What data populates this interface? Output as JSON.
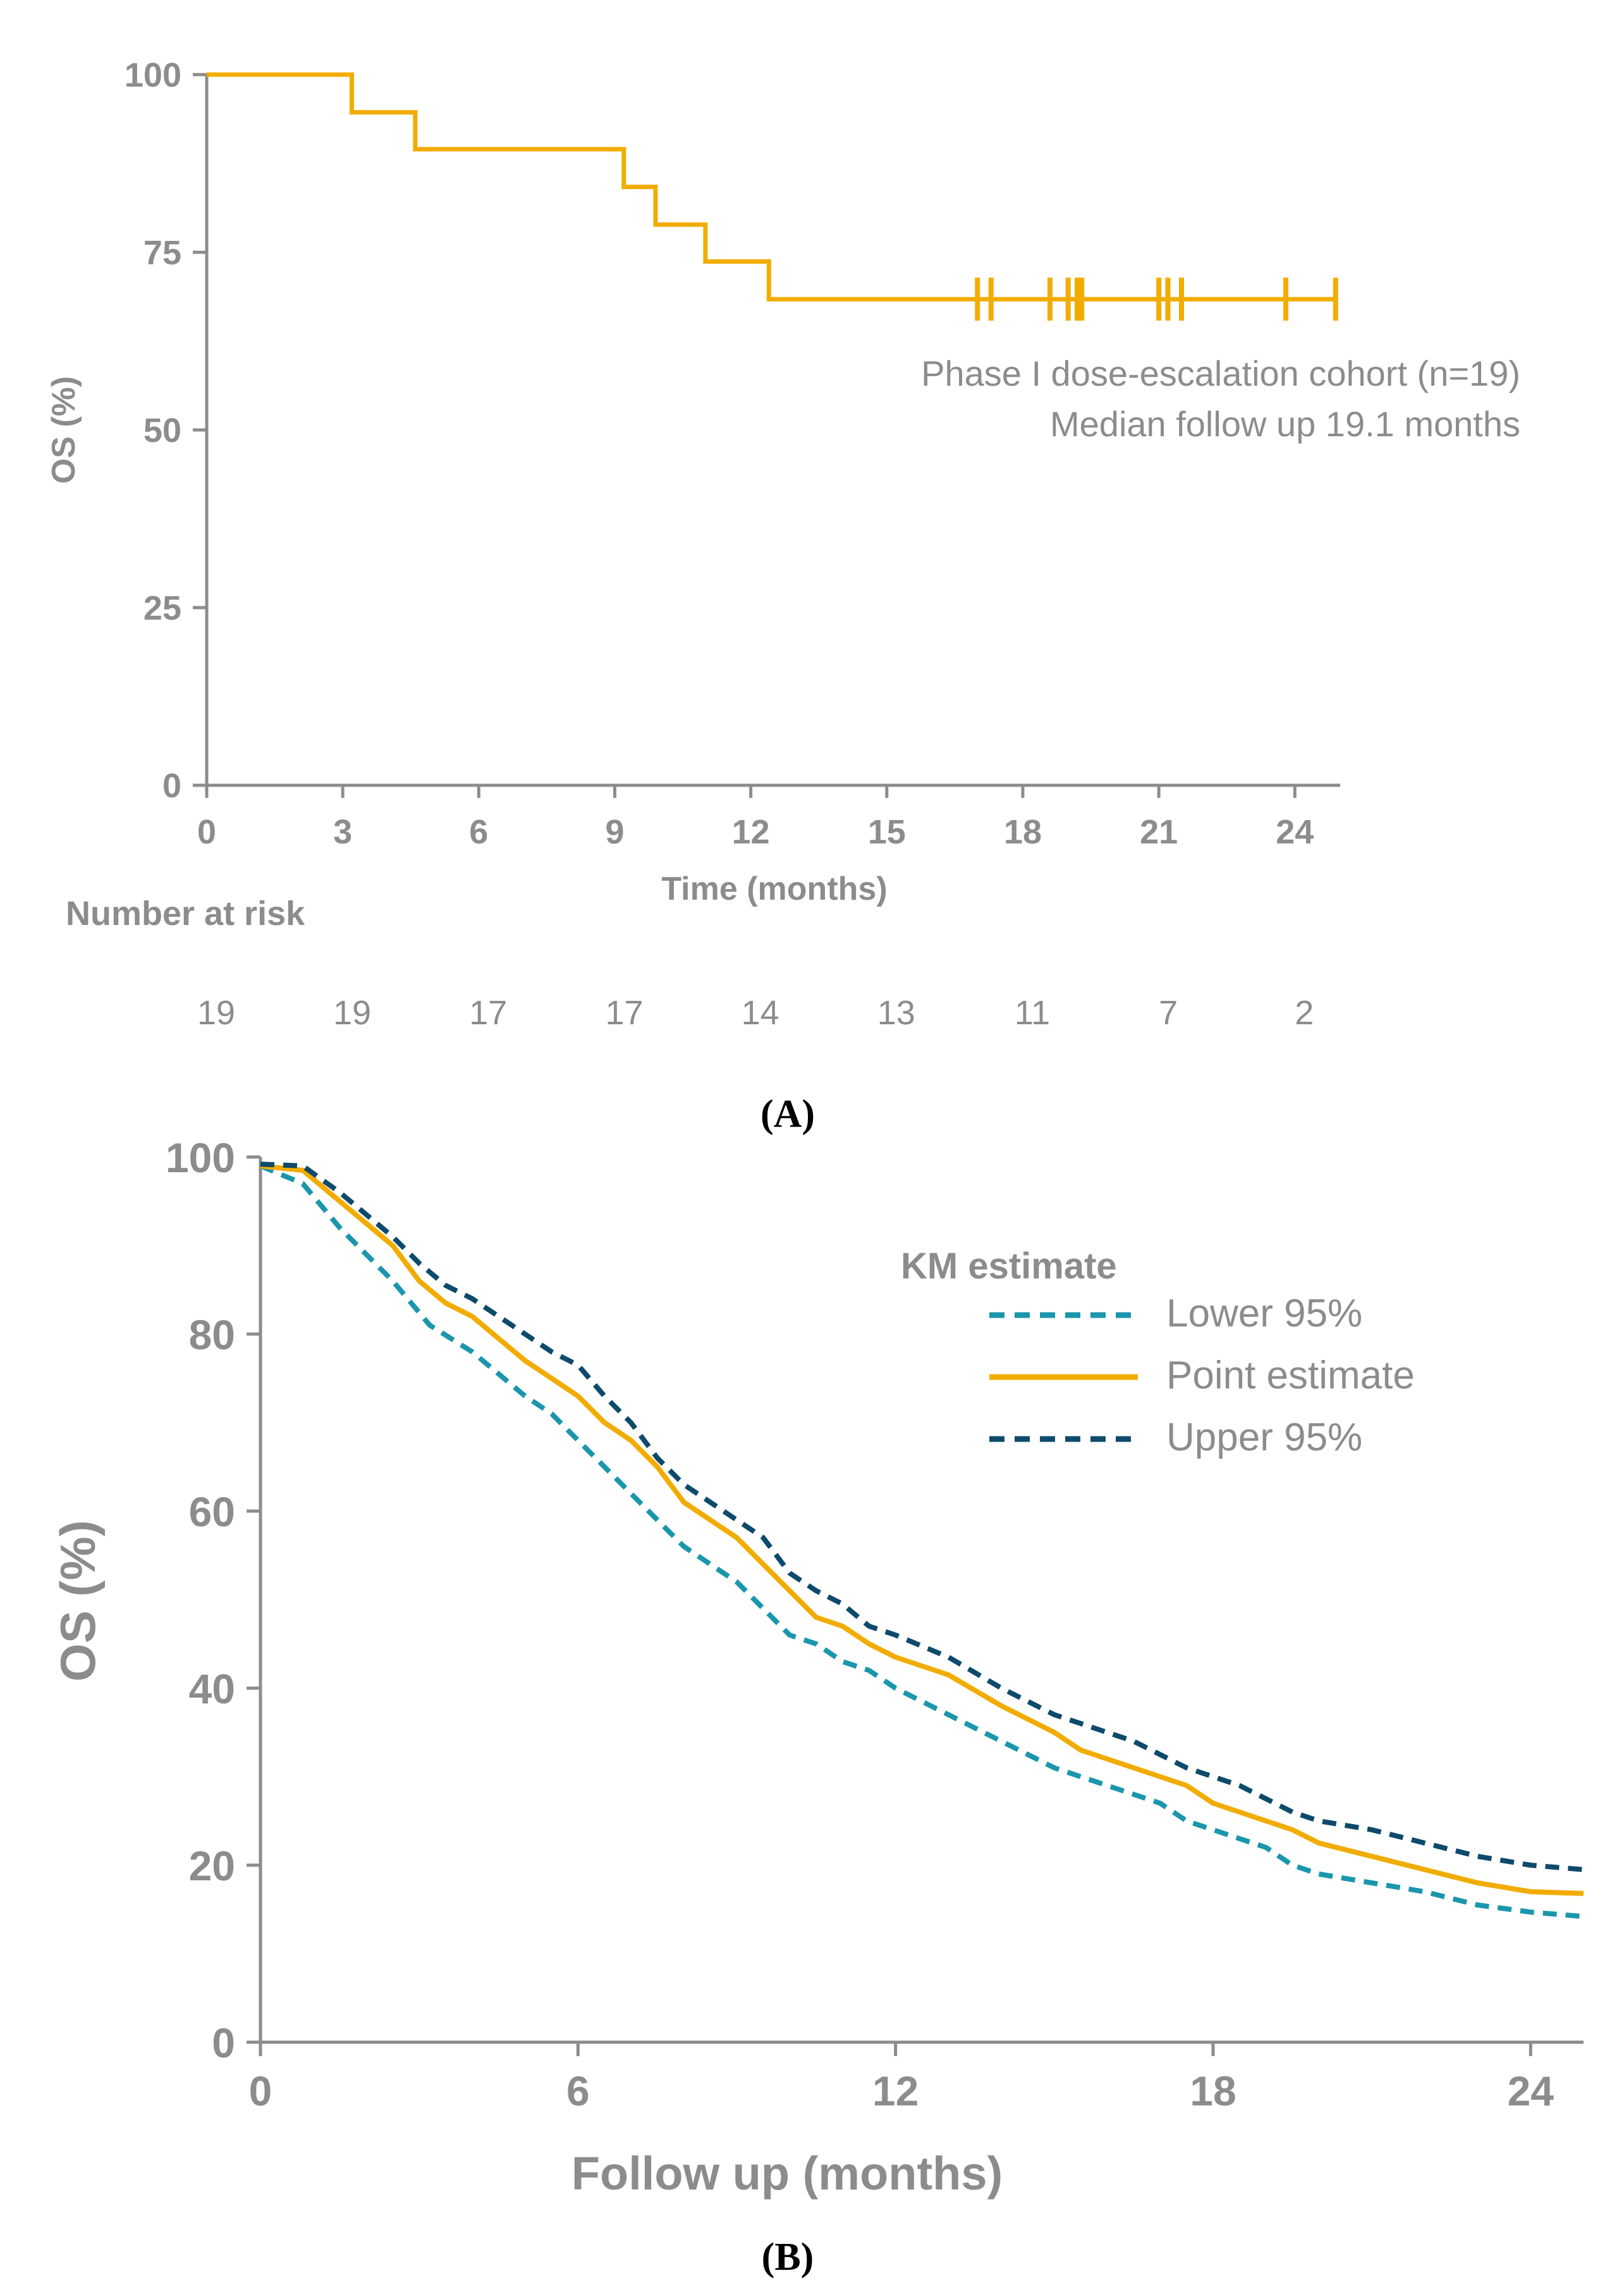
{
  "chart_data": [
    {
      "type": "line",
      "panel_label": "(A)",
      "title": "",
      "xlabel": "Time (months)",
      "ylabel": "OS (%)",
      "xlim": [
        0,
        25
      ],
      "ylim": [
        0,
        100
      ],
      "x_ticks": [
        0,
        3,
        6,
        9,
        12,
        15,
        18,
        21,
        24
      ],
      "y_ticks": [
        0,
        25,
        50,
        75,
        100
      ],
      "grid": false,
      "annotation": [
        "Phase I dose-escalation cohort (n=19)",
        "Median follow up 19.1 months"
      ],
      "series": [
        {
          "name": "OS",
          "color": "#f2ac00",
          "step": true,
          "points": [
            [
              0,
              100
            ],
            [
              3.2,
              100
            ],
            [
              3.2,
              94.7
            ],
            [
              4.6,
              94.7
            ],
            [
              4.6,
              89.5
            ],
            [
              9.2,
              89.5
            ],
            [
              9.2,
              84.2
            ],
            [
              9.9,
              84.2
            ],
            [
              9.9,
              78.9
            ],
            [
              11.0,
              78.9
            ],
            [
              11.0,
              73.7
            ],
            [
              12.4,
              73.7
            ],
            [
              12.4,
              68.4
            ],
            [
              24.9,
              68.4
            ]
          ],
          "censored": [
            17.0,
            17.3,
            18.6,
            19.0,
            19.2,
            19.3,
            21.0,
            21.2,
            21.5,
            23.8,
            24.9
          ]
        }
      ],
      "risk_table": {
        "title": "Number at risk",
        "times": [
          0,
          3,
          6,
          9,
          12,
          15,
          18,
          21,
          24
        ],
        "values": [
          "19",
          "19",
          "17",
          "17",
          "14",
          "13",
          "11",
          "7",
          "2"
        ]
      }
    },
    {
      "type": "line",
      "panel_label": "(B)",
      "title": "",
      "xlabel": "Follow up (months)",
      "ylabel": "OS (%)",
      "xlim": [
        0,
        25
      ],
      "ylim": [
        0,
        100
      ],
      "x_ticks": [
        0,
        6,
        12,
        18,
        24
      ],
      "y_ticks": [
        0,
        20,
        40,
        60,
        80,
        100
      ],
      "grid": false,
      "legend": {
        "title": "KM estimate",
        "position": "top-right",
        "entries": [
          "Lower 95%",
          "Point estimate",
          "Upper 95%"
        ]
      },
      "series": [
        {
          "name": "Lower 95%",
          "color": "#1a96ad",
          "dash": true,
          "x": [
            0,
            0.8,
            1.5,
            2.5,
            3.2,
            4,
            5,
            5.5,
            6,
            6.5,
            7,
            7.5,
            8,
            8.5,
            9,
            9.5,
            10,
            10.5,
            11,
            11.5,
            12,
            13,
            14,
            15,
            15.5,
            16,
            16.5,
            17,
            17.5,
            18,
            18.5,
            19,
            19.5,
            20,
            21,
            22,
            23,
            24,
            25
          ],
          "y": [
            99,
            97,
            92,
            86,
            81,
            78,
            73,
            71,
            68,
            65,
            62,
            59,
            56,
            54,
            52,
            49,
            46,
            45,
            43,
            42,
            40,
            37,
            34,
            31,
            30,
            29,
            28,
            27,
            25,
            24,
            23,
            22,
            20,
            19,
            18,
            17,
            15.5,
            14.7,
            14.2
          ]
        },
        {
          "name": "Point estimate",
          "color": "#f2ac00",
          "dash": false,
          "x": [
            0,
            0.8,
            1.5,
            2.5,
            3,
            3.5,
            4,
            5,
            5.5,
            6,
            6.5,
            7,
            7.5,
            8,
            8.5,
            9,
            9.5,
            10,
            10.5,
            11,
            11.5,
            12,
            13,
            14,
            15,
            15.5,
            16,
            16.5,
            17,
            17.5,
            18,
            18.5,
            19,
            19.5,
            20,
            21,
            22,
            23,
            24,
            25
          ],
          "y": [
            99,
            98.5,
            95,
            90,
            86,
            83.5,
            82,
            77,
            75,
            73,
            70,
            68,
            65,
            61,
            59,
            57,
            54,
            51,
            48,
            47,
            45,
            43.5,
            41.5,
            38,
            35,
            33,
            32,
            31,
            30,
            29,
            27,
            26,
            25,
            24,
            22.5,
            21,
            19.5,
            18,
            17,
            16.8
          ]
        },
        {
          "name": "Upper 95%",
          "color": "#0d4a6b",
          "dash": true,
          "x": [
            0,
            0.8,
            1.5,
            2.5,
            3,
            3.5,
            4,
            5,
            5.5,
            6,
            6.5,
            7,
            7.5,
            8,
            8.5,
            9,
            9.5,
            10,
            10.5,
            11,
            11.5,
            12,
            13,
            14,
            15,
            15.5,
            16,
            16.5,
            17,
            17.5,
            18,
            18.5,
            19,
            19.5,
            20,
            21,
            22,
            23,
            24,
            25
          ],
          "y": [
            99.2,
            99,
            96,
            91,
            88,
            85.5,
            84,
            80,
            78,
            76.5,
            73,
            70,
            66,
            63,
            61,
            59,
            57,
            53,
            51,
            49.5,
            47,
            46,
            43.5,
            40,
            37,
            36,
            35,
            34,
            32.5,
            31,
            30,
            29,
            27.5,
            26,
            25,
            24,
            22.5,
            21,
            20,
            19.5
          ]
        }
      ]
    }
  ]
}
